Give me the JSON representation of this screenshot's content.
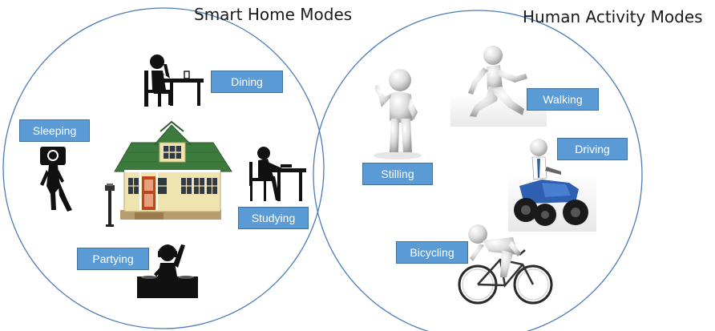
{
  "smart_home": {
    "title": "Smart Home Modes",
    "modes": {
      "dining": "Dining",
      "sleeping": "Sleeping",
      "studying": "Studying",
      "partying": "Partying"
    }
  },
  "human_activity": {
    "title": "Human Activity Modes",
    "modes": {
      "stilling": "Stilling",
      "walking": "Walking",
      "driving": "Driving",
      "bicycling": "Bicycling"
    }
  },
  "icons": [
    "dining-person-icon",
    "sleeping-person-icon",
    "house-icon",
    "street-lamp-icon",
    "studying-person-icon",
    "dj-icon",
    "thumbs-up-figure-icon",
    "walking-figure-icon",
    "atv-figure-icon",
    "cyclist-icon"
  ],
  "colors": {
    "circle_stroke": "#4a7cb8",
    "label_fill": "#5b9bd5",
    "label_border": "#41719c",
    "label_text": "#ffffff",
    "house_roof": "#3d7a3d",
    "house_wall": "#efe4b0",
    "house_door": "#c2431c"
  }
}
